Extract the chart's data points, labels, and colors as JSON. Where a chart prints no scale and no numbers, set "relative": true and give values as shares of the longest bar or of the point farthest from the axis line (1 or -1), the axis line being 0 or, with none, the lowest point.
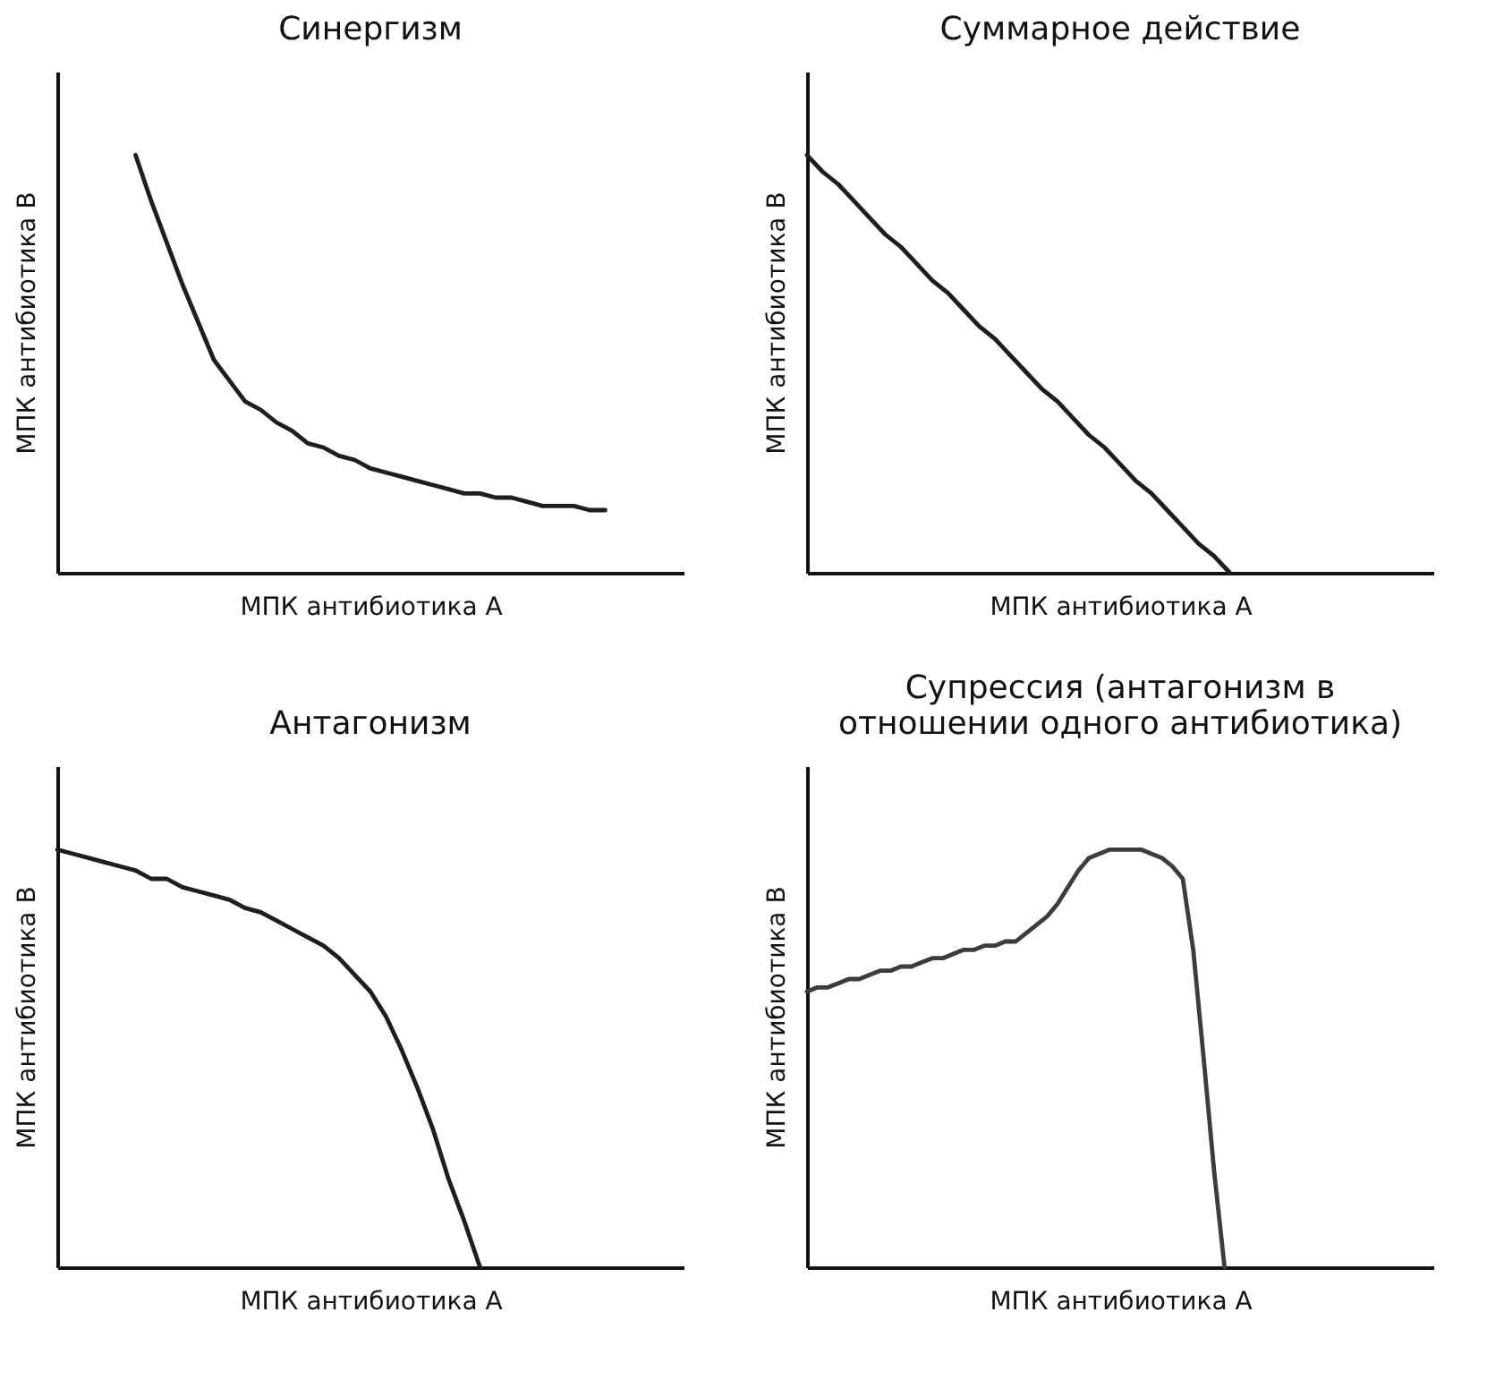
{
  "chart_data": [
    {
      "type": "line",
      "title": "Синергизм",
      "xlabel": "МПК антибиотика А",
      "ylabel": "МПК антибиотика В",
      "relative": true,
      "color": "#1e1e1e",
      "categories": [
        null,
        null,
        null,
        null,
        null,
        null,
        null,
        null,
        null,
        null,
        null,
        null,
        null,
        null,
        null,
        null,
        null,
        null,
        null,
        null,
        null,
        null,
        null,
        null,
        null,
        null,
        null,
        null,
        null,
        null,
        null,
        null,
        null,
        null,
        null,
        null,
        null,
        null,
        null,
        null,
        null
      ],
      "values": [
        null,
        null,
        null,
        null,
        null,
        1,
        0.89,
        0.79,
        0.69,
        0.6,
        0.51,
        0.46,
        0.41,
        0.39,
        0.36,
        0.34,
        0.31,
        0.3,
        0.28,
        0.27,
        0.25,
        0.24,
        0.23,
        0.22,
        0.21,
        0.2,
        0.19,
        0.19,
        0.18,
        0.18,
        0.17,
        0.16,
        0.16,
        0.16,
        0.15,
        0.15,
        null,
        null,
        null,
        null,
        null
      ]
    },
    {
      "type": "line",
      "title": "Суммарное действие",
      "xlabel": "МПК антибиотика А",
      "ylabel": "МПК антибиотика В",
      "relative": true,
      "color": "#1e1e1e",
      "categories": [
        null,
        null,
        null,
        null,
        null,
        null,
        null,
        null,
        null,
        null,
        null,
        null,
        null,
        null,
        null,
        null,
        null,
        null,
        null,
        null,
        null,
        null,
        null,
        null,
        null,
        null,
        null,
        null,
        null,
        null,
        null,
        null,
        null,
        null,
        null,
        null,
        null,
        null,
        null,
        null,
        null
      ],
      "values": [
        1,
        0.96,
        0.93,
        0.89,
        0.85,
        0.81,
        0.78,
        0.74,
        0.7,
        0.67,
        0.63,
        0.59,
        0.56,
        0.52,
        0.48,
        0.44,
        0.41,
        0.37,
        0.33,
        0.3,
        0.26,
        0.22,
        0.19,
        0.15,
        0.11,
        0.07,
        0.04,
        0,
        null,
        null,
        null,
        null,
        null,
        null,
        null,
        null,
        null,
        null,
        null,
        null,
        null
      ]
    },
    {
      "type": "line",
      "title": "Антагонизм",
      "xlabel": "МПК антибиотика А",
      "ylabel": "МПК антибиотика В",
      "relative": true,
      "color": "#1e1e1e",
      "categories": [
        null,
        null,
        null,
        null,
        null,
        null,
        null,
        null,
        null,
        null,
        null,
        null,
        null,
        null,
        null,
        null,
        null,
        null,
        null,
        null,
        null,
        null,
        null,
        null,
        null,
        null,
        null,
        null,
        null,
        null,
        null,
        null,
        null,
        null,
        null,
        null,
        null,
        null,
        null,
        null,
        null
      ],
      "values": [
        1,
        0.99,
        0.98,
        0.97,
        0.96,
        0.95,
        0.93,
        0.93,
        0.91,
        0.9,
        0.89,
        0.88,
        0.86,
        0.85,
        0.83,
        0.81,
        0.79,
        0.77,
        0.74,
        0.7,
        0.66,
        0.6,
        0.52,
        0.43,
        0.33,
        0.21,
        0.11,
        0,
        null,
        null,
        null,
        null,
        null,
        null,
        null,
        null,
        null,
        null,
        null,
        null,
        null
      ]
    },
    {
      "type": "line",
      "title": "Супрессия (антагонизм в\nотношении одного антибиотика)",
      "xlabel": "МПК антибиотика А",
      "ylabel": "МПК антибиотика В",
      "relative": true,
      "color": "#3c3c3c",
      "categories": [
        null,
        null,
        null,
        null,
        null,
        null,
        null,
        null,
        null,
        null,
        null,
        null,
        null,
        null,
        null,
        null,
        null,
        null,
        null,
        null,
        null,
        null,
        null,
        null,
        null,
        null,
        null,
        null,
        null,
        null,
        null,
        null,
        null,
        null,
        null,
        null,
        null,
        null,
        null,
        null,
        null,
        null,
        null,
        null,
        null,
        null,
        null,
        null,
        null,
        null,
        null,
        null,
        null,
        null,
        null,
        null,
        null,
        null,
        null,
        null,
        null
      ],
      "values": [
        0.66,
        0.67,
        0.67,
        0.68,
        0.69,
        0.69,
        0.7,
        0.71,
        0.71,
        0.72,
        0.72,
        0.73,
        0.74,
        0.74,
        0.75,
        0.76,
        0.76,
        0.77,
        0.77,
        0.78,
        0.78,
        0.8,
        0.82,
        0.84,
        0.87,
        0.91,
        0.95,
        0.98,
        0.99,
        1,
        1,
        1,
        1,
        0.99,
        0.98,
        0.96,
        0.93,
        0.76,
        0.5,
        0.23,
        0,
        null,
        null,
        null,
        null,
        null,
        null,
        null,
        null,
        null,
        null,
        null,
        null,
        null,
        null,
        null,
        null,
        null,
        null,
        null,
        null
      ]
    }
  ]
}
